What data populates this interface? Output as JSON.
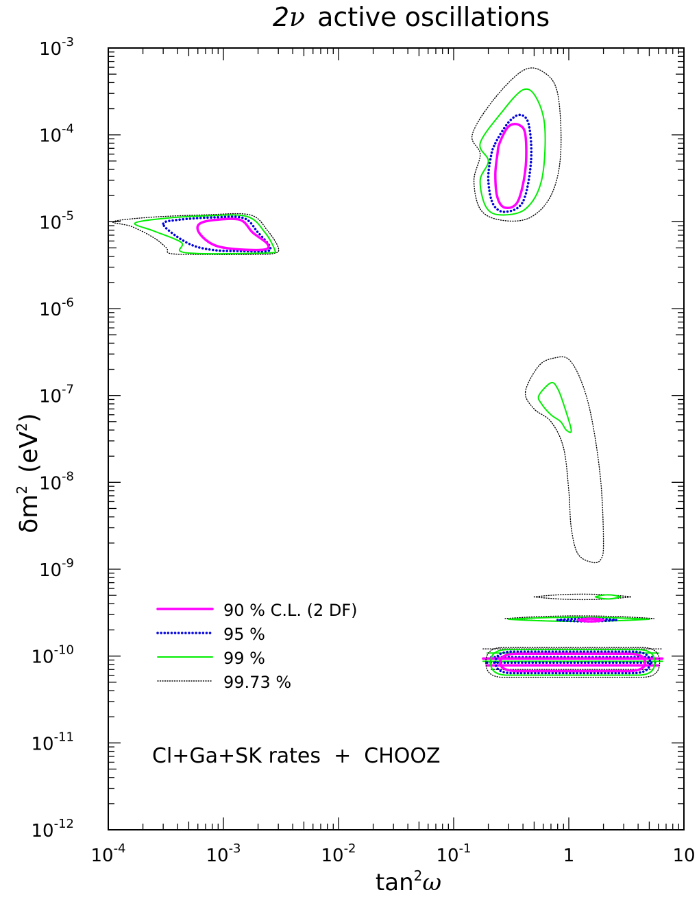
{
  "chart_data": {
    "type": "contour",
    "title": "2ν active oscillations",
    "title_prefix": "2",
    "title_nu": "ν",
    "title_rest": "active oscillations",
    "xlabel": "tan²ω",
    "xlabel_main": "tan",
    "xlabel_sup": "2",
    "xlabel_var": "ω",
    "ylabel": "δm² (eV²)",
    "ylabel_main": "δm",
    "ylabel_sup": "2",
    "ylabel_unit": "(eV",
    "ylabel_unit_sup": "2",
    "ylabel_close": ")",
    "x_scale": "log",
    "y_scale": "log",
    "xlim": [
      0.0001,
      10
    ],
    "ylim": [
      1e-12,
      0.001
    ],
    "x_ticks": [
      {
        "base": "10",
        "exp": "-4",
        "value": 0.0001
      },
      {
        "base": "10",
        "exp": "-3",
        "value": 0.001
      },
      {
        "base": "10",
        "exp": "-2",
        "value": 0.01
      },
      {
        "base": "10",
        "exp": "-1",
        "value": 0.1
      },
      {
        "base": "1",
        "exp": "",
        "value": 1
      },
      {
        "base": "10",
        "exp": "",
        "value": 10
      }
    ],
    "y_ticks": [
      {
        "base": "10",
        "exp": "-12",
        "value": 1e-12
      },
      {
        "base": "10",
        "exp": "-11",
        "value": 1e-11
      },
      {
        "base": "10",
        "exp": "-10",
        "value": 1e-10
      },
      {
        "base": "10",
        "exp": "-9",
        "value": 1e-09
      },
      {
        "base": "10",
        "exp": "-8",
        "value": 1e-08
      },
      {
        "base": "10",
        "exp": "-7",
        "value": 1e-07
      },
      {
        "base": "10",
        "exp": "-6",
        "value": 1e-06
      },
      {
        "base": "10",
        "exp": "-5",
        "value": 1e-05
      },
      {
        "base": "10",
        "exp": "-4",
        "value": 0.0001
      },
      {
        "base": "10",
        "exp": "-3",
        "value": 0.001
      }
    ],
    "legend": [
      {
        "label": "90 % C.L. (2 DF)",
        "color": "#ff00ff",
        "style": "solid-thick"
      },
      {
        "label": "95 %",
        "color": "#0000dd",
        "style": "dotted-thick"
      },
      {
        "label": "99 %",
        "color": "#00ee00",
        "style": "solid"
      },
      {
        "label": "99.73 %",
        "color": "#000000",
        "style": "dotted"
      }
    ],
    "annotation": "Cl+Ga+SK rates  +  CHOOZ",
    "contours": [
      {
        "name": "SMA-99.73",
        "level": "99.73 %",
        "points": [
          [
            0.00011,
            1e-05
          ],
          [
            0.00022,
            1.12e-05
          ],
          [
            0.0007,
            1.2e-05
          ],
          [
            0.0017,
            1.2e-05
          ],
          [
            0.0024,
            8e-06
          ],
          [
            0.003,
            5e-06
          ],
          [
            0.0027,
            4.3e-06
          ],
          [
            0.0016,
            4.2e-06
          ],
          [
            0.0007,
            4.2e-06
          ],
          [
            0.00035,
            4.3e-06
          ],
          [
            0.00032,
            5e-06
          ],
          [
            0.00025,
            6.5e-06
          ],
          [
            0.00016,
            8.8e-06
          ]
        ]
      },
      {
        "name": "SMA-99",
        "level": "99 %",
        "points": [
          [
            0.00017,
            9.6e-06
          ],
          [
            0.0003,
            1.09e-05
          ],
          [
            0.0007,
            1.17e-05
          ],
          [
            0.0016,
            1.15e-05
          ],
          [
            0.0023,
            7.5e-06
          ],
          [
            0.0028,
            4.7e-06
          ],
          [
            0.0026,
            4.4e-06
          ],
          [
            0.0014,
            4.3e-06
          ],
          [
            0.0006,
            4.3e-06
          ],
          [
            0.00042,
            4.6e-06
          ],
          [
            0.00043,
            5.8e-06
          ],
          [
            0.00025,
            7.8e-06
          ]
        ]
      },
      {
        "name": "SMA-95",
        "level": "95 %",
        "points": [
          [
            0.0003,
            9.5e-06
          ],
          [
            0.0004,
            1.05e-05
          ],
          [
            0.0008,
            1.12e-05
          ],
          [
            0.0015,
            1.1e-05
          ],
          [
            0.002,
            7.5e-06
          ],
          [
            0.0025,
            5.3e-06
          ],
          [
            0.0024,
            4.6e-06
          ],
          [
            0.0014,
            4.6e-06
          ],
          [
            0.00085,
            4.7e-06
          ],
          [
            0.00055,
            5.3e-06
          ],
          [
            0.00038,
            7e-06
          ]
        ]
      },
      {
        "name": "SMA-90",
        "level": "90 %",
        "points": [
          [
            0.00063,
            9.6e-06
          ],
          [
            0.00085,
            1.05e-05
          ],
          [
            0.0014,
            1.05e-05
          ],
          [
            0.0018,
            7.5e-06
          ],
          [
            0.0024,
            5.6e-06
          ],
          [
            0.0023,
            4.8e-06
          ],
          [
            0.0014,
            4.8e-06
          ],
          [
            0.0009,
            5.2e-06
          ],
          [
            0.0007,
            6.2e-06
          ],
          [
            0.0006,
            8e-06
          ]
        ]
      },
      {
        "name": "LMA-99.73",
        "level": "99.73 %",
        "points": [
          [
            0.145,
            0.0001
          ],
          [
            0.22,
            0.00025
          ],
          [
            0.4,
            0.00055
          ],
          [
            0.6,
            0.00053
          ],
          [
            0.8,
            0.0003
          ],
          [
            0.85,
            6e-05
          ],
          [
            0.7,
            2e-05
          ],
          [
            0.45,
            1.1e-05
          ],
          [
            0.25,
            1.05e-05
          ],
          [
            0.17,
            1.4e-05
          ],
          [
            0.15,
            3e-05
          ],
          [
            0.17,
            6e-05
          ]
        ]
      },
      {
        "name": "LMA-99",
        "level": "99 %",
        "points": [
          [
            0.17,
            8e-05
          ],
          [
            0.26,
            0.00018
          ],
          [
            0.4,
            0.00033
          ],
          [
            0.52,
            0.00027
          ],
          [
            0.62,
            0.00012
          ],
          [
            0.58,
            3e-05
          ],
          [
            0.42,
            1.4e-05
          ],
          [
            0.25,
            1.2e-05
          ],
          [
            0.19,
            1.5e-05
          ],
          [
            0.17,
            3e-05
          ],
          [
            0.2,
            5e-05
          ]
        ]
      },
      {
        "name": "LMA-95",
        "level": "95 %",
        "points": [
          [
            0.23,
            8e-05
          ],
          [
            0.3,
            0.00014
          ],
          [
            0.38,
            0.00017
          ],
          [
            0.45,
            0.00013
          ],
          [
            0.47,
            5e-05
          ],
          [
            0.4,
            1.7e-05
          ],
          [
            0.28,
            1.3e-05
          ],
          [
            0.22,
            1.6e-05
          ],
          [
            0.2,
            3e-05
          ],
          [
            0.21,
            5.5e-05
          ]
        ]
      },
      {
        "name": "LMA-90",
        "level": "90 %",
        "points": [
          [
            0.25,
            8e-05
          ],
          [
            0.3,
            0.000125
          ],
          [
            0.37,
            0.00013
          ],
          [
            0.42,
            0.0001
          ],
          [
            0.42,
            4e-05
          ],
          [
            0.36,
            1.7e-05
          ],
          [
            0.28,
            1.45e-05
          ],
          [
            0.24,
            1.9e-05
          ],
          [
            0.23,
            3.5e-05
          ],
          [
            0.24,
            6e-05
          ]
        ]
      },
      {
        "name": "LOW-99.73",
        "level": "99.73 %",
        "points": [
          [
            0.42,
            1.1e-07
          ],
          [
            0.55,
            2.2e-07
          ],
          [
            0.75,
            2.7e-07
          ],
          [
            1.0,
            2.6e-07
          ],
          [
            1.3,
            1.4e-07
          ],
          [
            1.6,
            5e-08
          ],
          [
            1.9,
            1e-08
          ],
          [
            2.0,
            2e-09
          ],
          [
            1.9,
            1.3e-09
          ],
          [
            1.6,
            1.2e-09
          ],
          [
            1.2,
            1.5e-09
          ],
          [
            1.05,
            3e-09
          ],
          [
            1.0,
            8e-09
          ],
          [
            0.9,
            2.5e-08
          ],
          [
            0.7,
            5e-08
          ],
          [
            0.5,
            7e-08
          ]
        ]
      },
      {
        "name": "LOW-99",
        "level": "99 %",
        "points": [
          [
            0.55,
            1e-07
          ],
          [
            0.7,
            1.4e-07
          ],
          [
            0.8,
            1.2e-07
          ],
          [
            0.9,
            8e-08
          ],
          [
            1.05,
            4e-08
          ],
          [
            0.95,
            4e-08
          ],
          [
            0.85,
            5e-08
          ],
          [
            0.7,
            6e-08
          ],
          [
            0.58,
            8e-08
          ]
        ]
      }
    ],
    "vac_islands": [
      {
        "name": "VAC-99.73-upper",
        "level": "99.73 %",
        "x": [
          0.5,
          3.5
        ],
        "y": 4.8e-10
      },
      {
        "name": "VAC-99-upper",
        "level": "99 %",
        "x": [
          1.7,
          2.8
        ],
        "y": 4.8e-10
      },
      {
        "name": "VAC-99.73-mid",
        "level": "99.73 %",
        "x": [
          0.28,
          5.5
        ],
        "y": 2.7e-10
      },
      {
        "name": "VAC-99-mid",
        "level": "99 %",
        "x": [
          0.3,
          5
        ],
        "y": 2.65e-10
      },
      {
        "name": "VAC-95-mid",
        "level": "95 %",
        "x": [
          0.8,
          2.6
        ],
        "y": 2.6e-10
      },
      {
        "name": "VAC-90-mid",
        "level": "90 %",
        "x": [
          1.2,
          2.0
        ],
        "y": 2.6e-10
      }
    ],
    "vac_band": {
      "x": [
        0.18,
        6.5
      ],
      "y": [
        5.5e-11,
        1.3e-10
      ]
    }
  }
}
